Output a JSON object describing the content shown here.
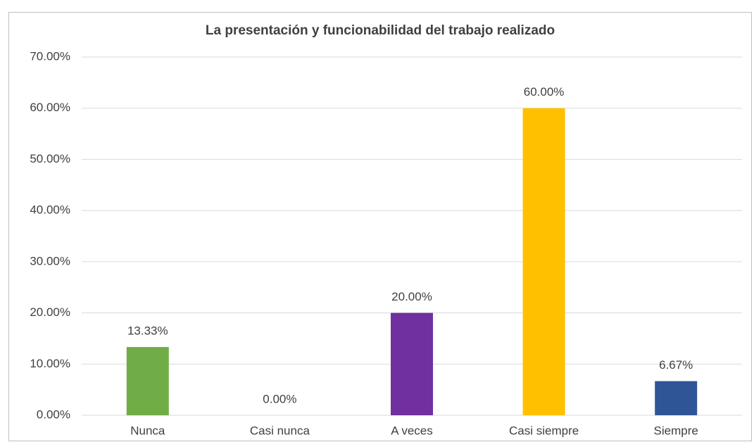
{
  "chart_data": {
    "type": "bar",
    "title": "La presentación y funcionabilidad del trabajo realizado",
    "categories": [
      "Nunca",
      "Casi nunca",
      "A veces",
      "Casi siempre",
      "Siempre"
    ],
    "values": [
      13.33,
      0,
      20,
      60,
      6.67
    ],
    "value_labels": [
      "13.33%",
      "0.00%",
      "20.00%",
      "60.00%",
      "6.67%"
    ],
    "colors": [
      "#70ad47",
      "#a5a5a5",
      "#7030a0",
      "#ffc000",
      "#2f5597"
    ],
    "ylim": [
      0,
      70
    ],
    "yticks": [
      {
        "value": 0,
        "label": "0.00%"
      },
      {
        "value": 10,
        "label": "10.00%"
      },
      {
        "value": 20,
        "label": "20.00%"
      },
      {
        "value": 30,
        "label": "30.00%"
      },
      {
        "value": 40,
        "label": "40.00%"
      },
      {
        "value": 50,
        "label": "50.00%"
      },
      {
        "value": 60,
        "label": "60.00%"
      },
      {
        "value": 70,
        "label": "70.00%"
      }
    ],
    "grid": true
  }
}
